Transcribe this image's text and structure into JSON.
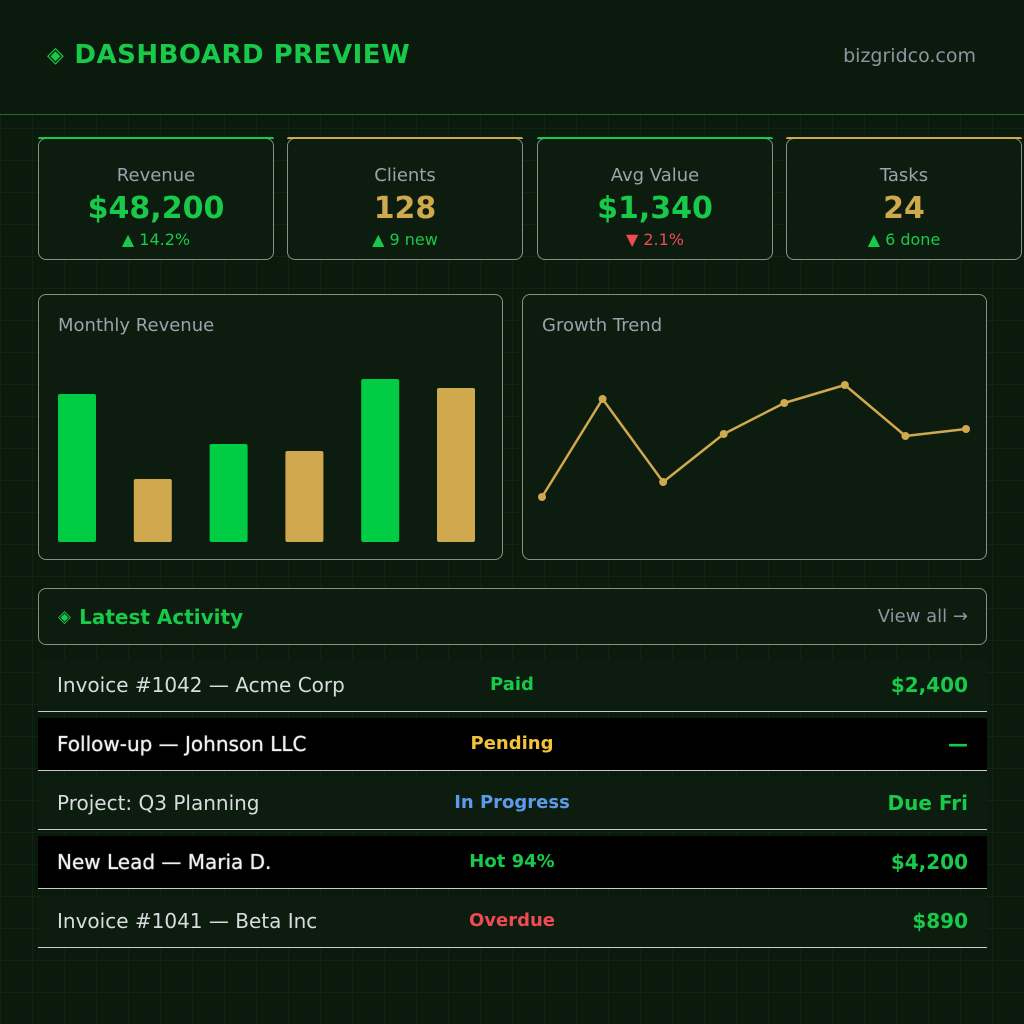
{
  "header": {
    "title": "DASHBOARD PREVIEW",
    "site": "bizgridco.com"
  },
  "stats": [
    {
      "label": "Revenue",
      "value": "$48,200",
      "change": "▲ 14.2%"
    },
    {
      "label": "Clients",
      "value": "128",
      "change": "▲ 9 new"
    },
    {
      "label": "Avg Value",
      "value": "$1,340",
      "change": "▼ 2.1%"
    },
    {
      "label": "Tasks",
      "value": "24",
      "change": "▲ 6 done"
    }
  ],
  "colors": {
    "green": "#18c94a",
    "gold": "#d0a84e",
    "red": "#f04a55",
    "yellow": "#f2c33a",
    "blue": "#5b9be8"
  },
  "panels": {
    "monthly_revenue": {
      "title": "Monthly Revenue"
    },
    "growth_trend": {
      "title": "Growth Trend"
    }
  },
  "chart_data": [
    {
      "type": "bar",
      "title": "Monthly Revenue",
      "categories": [
        "",
        "",
        "",
        "",
        "",
        ""
      ],
      "values": [
        148,
        63,
        98,
        91,
        163,
        154
      ],
      "colors": [
        "#00cc44",
        "#d0a84e",
        "#00cc44",
        "#d0a84e",
        "#00cc44",
        "#d0a84e"
      ],
      "ylim": [
        0,
        180
      ],
      "grid": false
    },
    {
      "type": "line",
      "title": "Growth Trend",
      "x": [
        1,
        2,
        3,
        4,
        5,
        6,
        7,
        8
      ],
      "y": [
        9,
        107,
        24,
        72,
        103,
        121,
        70,
        77
      ],
      "ylim": [
        0,
        130
      ],
      "color": "#d0a84e",
      "grid": false
    }
  ],
  "activity": {
    "title": "Latest Activity",
    "view_all": "View all →",
    "rows": [
      {
        "desc": "Invoice #1042 — Acme Corp",
        "status": "Paid",
        "amount": "$2,400"
      },
      {
        "desc": "Follow-up — Johnson LLC",
        "status": "Pending",
        "amount": "—"
      },
      {
        "desc": "Project: Q3 Planning",
        "status": "In Progress",
        "amount": "Due Fri"
      },
      {
        "desc": "New Lead — Maria D.",
        "status": "Hot 94%",
        "amount": "$4,200"
      },
      {
        "desc": "Invoice #1041 — Beta Inc",
        "status": "Overdue",
        "amount": "$890"
      }
    ]
  }
}
